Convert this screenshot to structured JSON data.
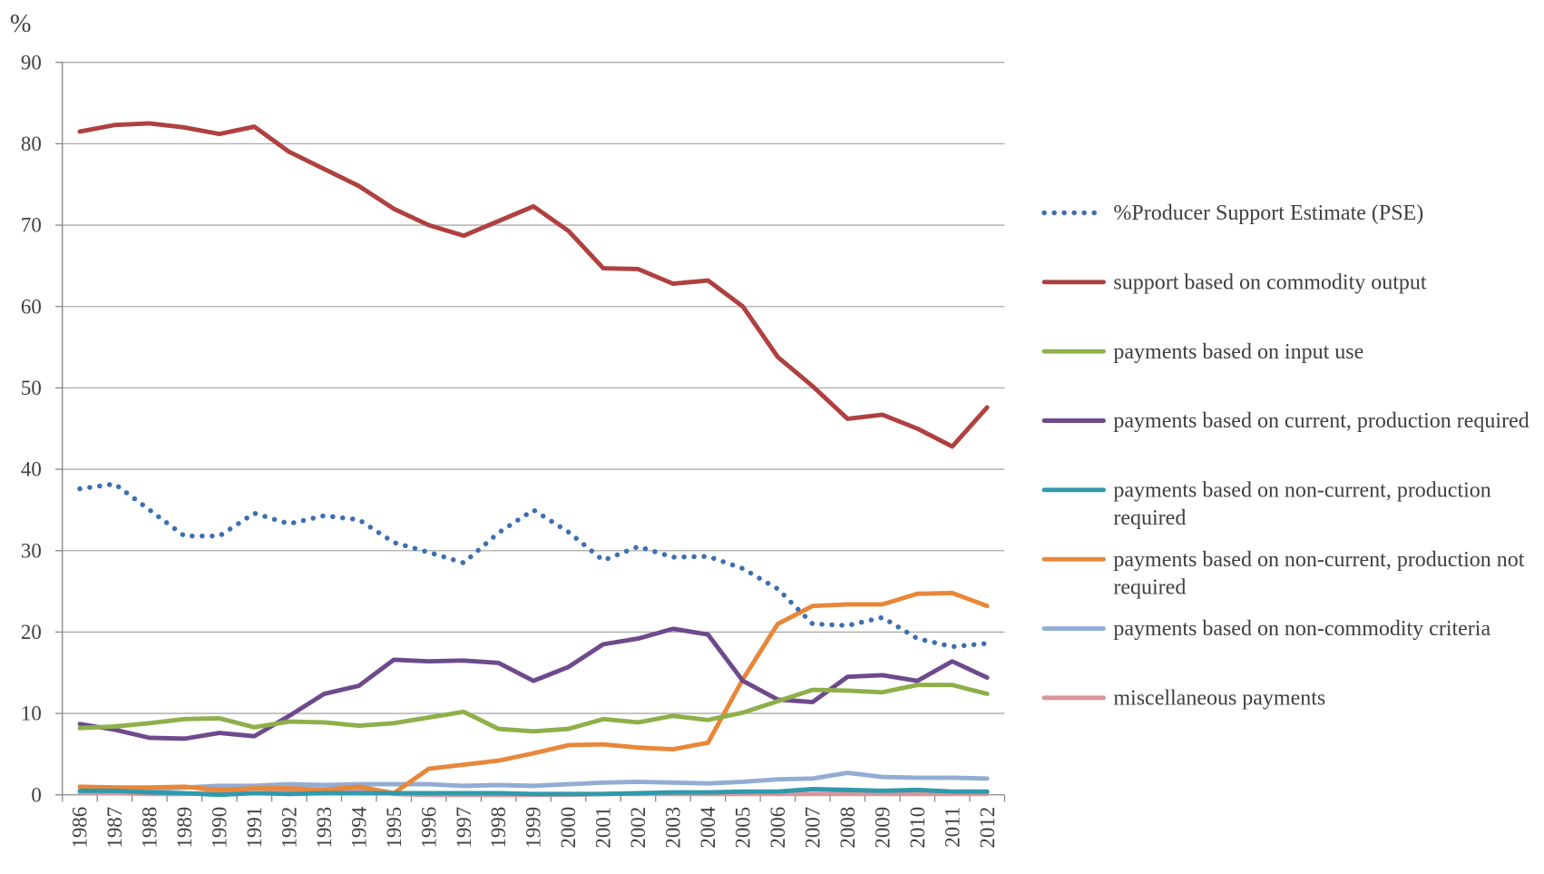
{
  "chart_data": {
    "type": "line",
    "y_label": "%",
    "categories": [
      "1986",
      "1987",
      "1988",
      "1989",
      "1990",
      "1991",
      "1992",
      "1993",
      "1994",
      "1995",
      "1996",
      "1997",
      "1998",
      "1999",
      "2000",
      "2001",
      "2002",
      "2003",
      "2004",
      "2005",
      "2006",
      "2007",
      "2008",
      "2009",
      "2010",
      "2011",
      "2012"
    ],
    "ylim": [
      0,
      90
    ],
    "yticks": [
      0,
      10,
      20,
      30,
      40,
      50,
      60,
      70,
      80,
      90
    ],
    "grid": true,
    "legend": "right",
    "series": [
      {
        "name": "%Producer Support Estimate (PSE)",
        "color": "#3c6fb0",
        "dashed": true,
        "values": [
          37.6,
          38.2,
          35,
          31.8,
          31.8,
          34.6,
          33.3,
          34.3,
          33.8,
          31,
          29.8,
          28.5,
          32.2,
          35,
          32.3,
          28.8,
          30.5,
          29.2,
          29.3,
          27.8,
          25.3,
          21,
          20.8,
          21.8,
          19.2,
          18.2,
          18.6
        ]
      },
      {
        "name": "support based on commodity output",
        "color": "#b04040",
        "values": [
          81.5,
          82.3,
          82.5,
          82,
          81.2,
          82.1,
          79,
          76.9,
          74.8,
          72,
          70,
          68.7,
          70.5,
          72.3,
          69.3,
          64.7,
          64.6,
          62.8,
          63.2,
          60,
          53.8,
          50.2,
          46.2,
          46.7,
          45,
          42.8,
          47.6
        ]
      },
      {
        "name": "payments based on input use",
        "color": "#8db04a",
        "values": [
          8.2,
          8.4,
          8.8,
          9.3,
          9.4,
          8.3,
          9.0,
          8.9,
          8.5,
          8.8,
          9.5,
          10.2,
          8.1,
          7.8,
          8.1,
          9.3,
          8.9,
          9.7,
          9.2,
          10.1,
          11.5,
          12.9,
          12.8,
          12.6,
          13.5,
          13.5,
          12.4
        ]
      },
      {
        "name": "payments based on current, production required",
        "color": "#6e4a8c",
        "values": [
          8.7,
          8.0,
          7.0,
          6.9,
          7.6,
          7.2,
          9.7,
          12.4,
          13.4,
          16.6,
          16.4,
          16.5,
          16.2,
          14.0,
          15.7,
          18.5,
          19.2,
          20.4,
          19.7,
          14.0,
          11.7,
          11.4,
          14.5,
          14.7,
          14.0,
          16.4,
          14.4
        ]
      },
      {
        "name": "payments based on non-current, production required",
        "color": "#2f9aab",
        "values": [
          0.5,
          0.5,
          0.3,
          0.2,
          0,
          0.2,
          0.1,
          0.2,
          0.2,
          0.2,
          0.2,
          0.2,
          0.2,
          0.1,
          0.1,
          0.1,
          0.2,
          0.3,
          0.3,
          0.4,
          0.4,
          0.7,
          0.6,
          0.5,
          0.6,
          0.4,
          0.4
        ]
      },
      {
        "name": "payments based on non-current, production not required",
        "color": "#e8873a",
        "values": [
          1.0,
          0.9,
          0.9,
          1.0,
          0.6,
          0.8,
          0.8,
          0.6,
          1.0,
          0.2,
          3.2,
          3.7,
          4.2,
          5.1,
          6.1,
          6.2,
          5.8,
          5.6,
          6.4,
          14.2,
          21.0,
          23.2,
          23.4,
          23.4,
          24.7,
          24.8,
          23.2
        ]
      },
      {
        "name": "payments based on non-commodity criteria",
        "color": "#93acd4",
        "values": [
          0.3,
          0.5,
          0.7,
          0.9,
          1.1,
          1.1,
          1.3,
          1.2,
          1.3,
          1.3,
          1.3,
          1.1,
          1.2,
          1.1,
          1.3,
          1.5,
          1.6,
          1.5,
          1.4,
          1.6,
          1.9,
          2.0,
          2.7,
          2.2,
          2.1,
          2.1,
          2.0
        ]
      },
      {
        "name": "miscellaneous payments",
        "color": "#d9959a",
        "values": [
          0.2,
          0.2,
          0.1,
          0.1,
          0.3,
          0.8,
          0.5,
          0.3,
          0.7,
          0.1,
          0,
          0,
          0,
          0,
          0,
          0.1,
          0.1,
          0.1,
          0.1,
          0.1,
          0.1,
          0.1,
          0.1,
          0.1,
          0.1,
          0.1,
          0.1
        ]
      }
    ]
  }
}
